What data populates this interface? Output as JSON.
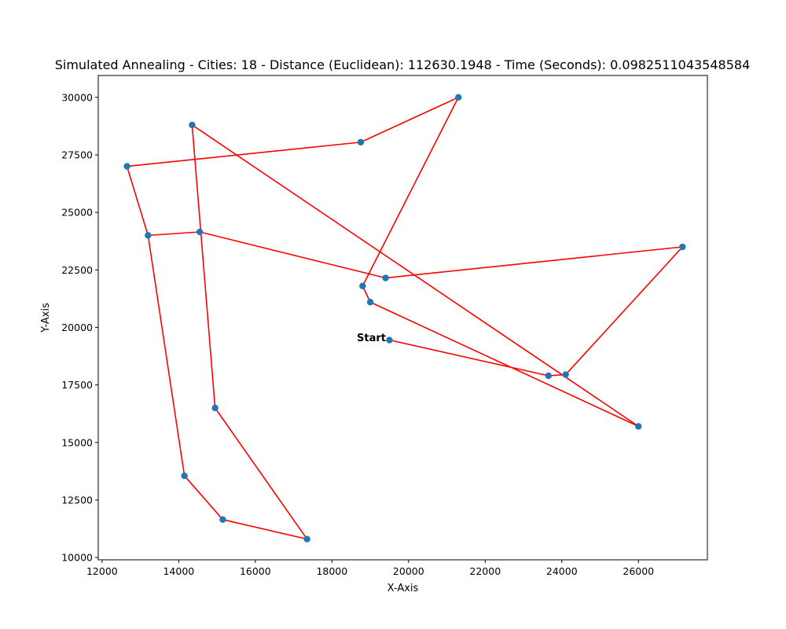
{
  "chart_data": {
    "type": "line",
    "title": "Simulated Annealing - Cities: 18 - Distance (Euclidean): 112630.1948 - Time (Seconds): 0.0982511043548584",
    "xlabel": "X-Axis",
    "ylabel": "Y-Axis",
    "xlim": [
      11900,
      27800
    ],
    "ylim": [
      9900,
      30950
    ],
    "xticks": [
      12000,
      14000,
      16000,
      18000,
      20000,
      22000,
      24000,
      26000
    ],
    "yticks": [
      10000,
      12500,
      15000,
      17500,
      20000,
      22500,
      25000,
      27500,
      30000
    ],
    "grid": false,
    "colors": {
      "route": "#ff0000",
      "cities": "#1f77b4"
    },
    "annotations": [
      {
        "text": "Start",
        "x": 18650,
        "y": 19400
      }
    ],
    "route": {
      "x": [
        19500,
        23650,
        24100,
        27150,
        19400,
        14550,
        13200,
        12650,
        18750,
        21300,
        18800,
        19000,
        26000,
        14350,
        14950,
        17350,
        15150,
        14150,
        13200
      ],
      "y": [
        19450,
        17900,
        17950,
        23500,
        22150,
        24150,
        24000,
        27000,
        28050,
        30000,
        21800,
        21100,
        15700,
        28800,
        16500,
        10800,
        11650,
        13550,
        24000
      ]
    },
    "cities": {
      "x": [
        19500,
        23650,
        24100,
        27150,
        19400,
        14550,
        13200,
        12650,
        18750,
        21300,
        18800,
        19000,
        26000,
        14350,
        14950,
        17350,
        15150,
        14150
      ],
      "y": [
        19450,
        17900,
        17950,
        23500,
        22150,
        24150,
        24000,
        27000,
        28050,
        30000,
        21800,
        21100,
        15700,
        28800,
        16500,
        10800,
        11650,
        13550
      ]
    }
  }
}
